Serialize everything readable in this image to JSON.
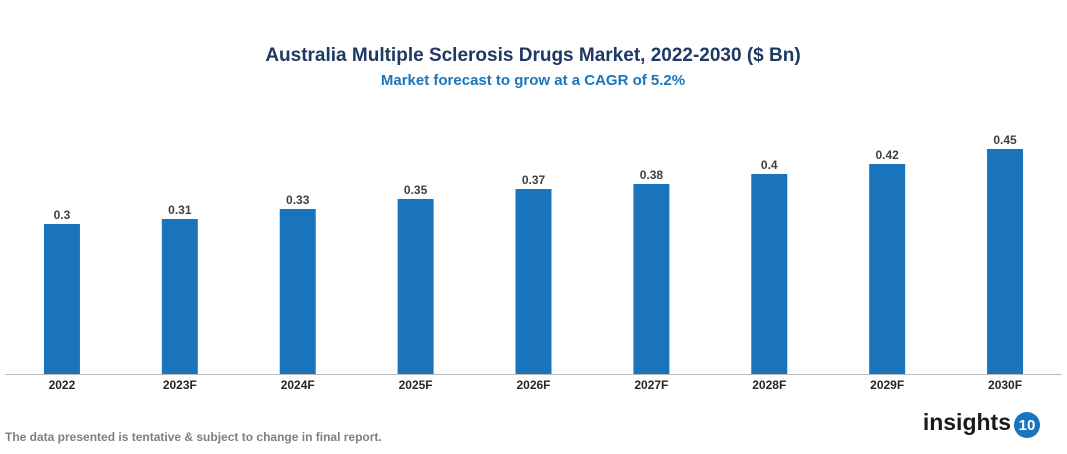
{
  "chart_data": {
    "type": "bar",
    "title": "Australia Multiple Sclerosis Drugs Market, 2022-2030 ($ Bn)",
    "subtitle": "Market forecast to grow at a CAGR of 5.2%",
    "categories": [
      "2022",
      "2023F",
      "2024F",
      "2025F",
      "2026F",
      "2027F",
      "2028F",
      "2029F",
      "2030F"
    ],
    "values": [
      0.3,
      0.31,
      0.33,
      0.35,
      0.37,
      0.38,
      0.4,
      0.42,
      0.45
    ],
    "color": "#1a74bc"
  },
  "footnote": "The data presented is tentative & subject to change in final report.",
  "logo": {
    "text": "insights",
    "badge": "10"
  }
}
